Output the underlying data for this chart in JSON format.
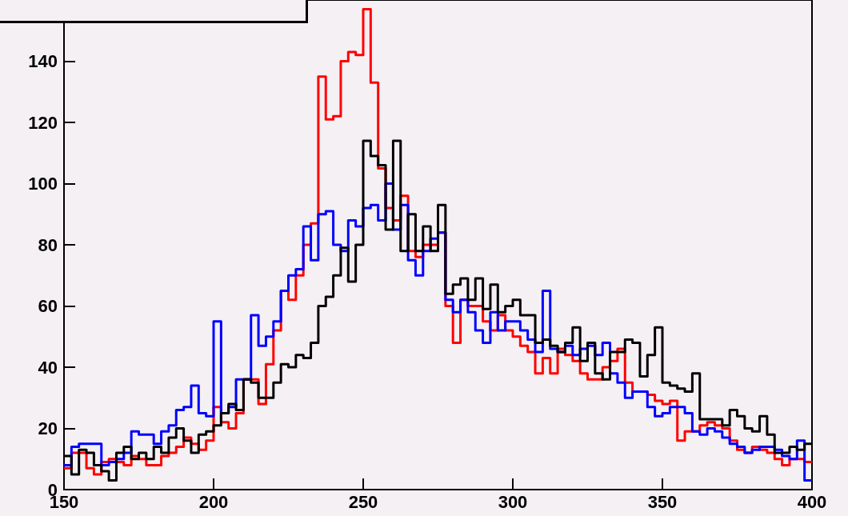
{
  "chart_data": {
    "type": "histogram",
    "bins": [
      150,
      152.5,
      155,
      157.5,
      160,
      162.5,
      165,
      167.5,
      170,
      172.5,
      175,
      177.5,
      180,
      182.5,
      185,
      187.5,
      190,
      192.5,
      195,
      197.5,
      200,
      202.5,
      205,
      207.5,
      210,
      212.5,
      215,
      217.5,
      220,
      222.5,
      225,
      227.5,
      230,
      232.5,
      235,
      237.5,
      240,
      242.5,
      245,
      247.5,
      250,
      252.5,
      255,
      257.5,
      260,
      262.5,
      265,
      267.5,
      270,
      272.5,
      275,
      277.5,
      280,
      282.5,
      285,
      287.5,
      290,
      292.5,
      295,
      297.5,
      300,
      302.5,
      305,
      307.5,
      310,
      312.5,
      315,
      317.5,
      320,
      322.5,
      325,
      327.5,
      330,
      332.5,
      335,
      337.5,
      340,
      342.5,
      345,
      347.5,
      350,
      352.5,
      355,
      357.5,
      360,
      362.5,
      365,
      367.5,
      370,
      372.5,
      375,
      377.5,
      380,
      382.5,
      385,
      387.5,
      390,
      392.5,
      395,
      397.5,
      400
    ],
    "series": [
      {
        "color": "#ff0000",
        "values": [
          7,
          12,
          12,
          7,
          5,
          9,
          10,
          9,
          8,
          11,
          10,
          8,
          8,
          11,
          12,
          14,
          17,
          15,
          13,
          16,
          27,
          22,
          20,
          25,
          36,
          36,
          28,
          41,
          52,
          65,
          62,
          70,
          80,
          87,
          135,
          121,
          122,
          140,
          143,
          142,
          157,
          133,
          105,
          92,
          88,
          96,
          78,
          76,
          80,
          80,
          84,
          60,
          48,
          62,
          60,
          60,
          55,
          52,
          57,
          52,
          50,
          47,
          45,
          38,
          43,
          38,
          46,
          44,
          42,
          38,
          36,
          36,
          40,
          42,
          46,
          35,
          32,
          32,
          31,
          29,
          28,
          29,
          16,
          19,
          19,
          21,
          22,
          21,
          20,
          16,
          13,
          12,
          14,
          13,
          12,
          10,
          8,
          10,
          10,
          9
        ]
      },
      {
        "color": "#0000ff",
        "values": [
          8,
          14,
          15,
          15,
          15,
          8,
          9,
          10,
          12,
          19,
          18,
          18,
          15,
          19,
          21,
          26,
          27,
          34,
          25,
          24,
          55,
          25,
          27,
          36,
          36,
          57,
          47,
          50,
          55,
          65,
          70,
          72,
          86,
          75,
          90,
          91,
          80,
          78,
          88,
          86,
          92,
          93,
          88,
          100,
          85,
          93,
          75,
          70,
          78,
          82,
          84,
          62,
          58,
          62,
          58,
          52,
          48,
          58,
          52,
          55,
          55,
          52,
          49,
          45,
          65,
          46,
          45,
          47,
          44,
          46,
          47,
          44,
          48,
          38,
          35,
          30,
          32,
          32,
          27,
          24,
          25,
          27,
          27,
          25,
          19,
          18,
          20,
          19,
          17,
          15,
          14,
          12,
          13,
          14,
          14,
          13,
          11,
          10,
          16,
          3
        ]
      },
      {
        "color": "#000000",
        "values": [
          11,
          5,
          13,
          12,
          8,
          6,
          3,
          12,
          14,
          10,
          12,
          10,
          14,
          12,
          17,
          20,
          16,
          12,
          18,
          19,
          21,
          25,
          28,
          26,
          36,
          35,
          30,
          30,
          35,
          41,
          40,
          44,
          43,
          48,
          60,
          63,
          70,
          79,
          68,
          80,
          114,
          109,
          106,
          85,
          114,
          78,
          90,
          78,
          86,
          78,
          93,
          64,
          67,
          69,
          62,
          69,
          59,
          67,
          58,
          60,
          62,
          57,
          57,
          48,
          49,
          47,
          45,
          48,
          53,
          42,
          48,
          38,
          36,
          45,
          45,
          49,
          48,
          37,
          44,
          53,
          35,
          34,
          33,
          32,
          38,
          23,
          23,
          23,
          21,
          26,
          24,
          20,
          19,
          24,
          18,
          12,
          12,
          14,
          13,
          15
        ]
      }
    ],
    "xlim": [
      150,
      400
    ],
    "xticks": [
      150,
      200,
      250,
      300,
      350,
      400
    ],
    "ylim": [
      0,
      160
    ],
    "yticks": [
      0,
      20,
      40,
      60,
      80,
      100,
      120,
      140
    ]
  }
}
